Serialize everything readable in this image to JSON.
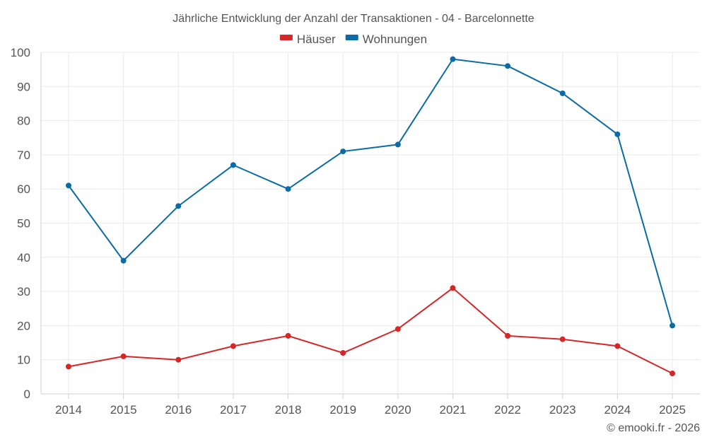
{
  "chart_data": {
    "type": "line",
    "title": "Jährliche Entwicklung der Anzahl der Transaktionen - 04 - Barcelonnette",
    "xlabel": "",
    "ylabel": "",
    "categories": [
      "2014",
      "2015",
      "2016",
      "2017",
      "2018",
      "2019",
      "2020",
      "2021",
      "2022",
      "2023",
      "2024",
      "2025"
    ],
    "ylim": [
      0,
      100
    ],
    "yticks": [
      0,
      10,
      20,
      30,
      40,
      50,
      60,
      70,
      80,
      90,
      100
    ],
    "grid": true,
    "legend_position": "top-center",
    "series": [
      {
        "name": "Häuser",
        "color": "#d62728",
        "values": [
          8,
          11,
          10,
          14,
          17,
          12,
          19,
          31,
          17,
          16,
          14,
          6
        ]
      },
      {
        "name": "Wohnungen",
        "color": "#0b6ba5",
        "values": [
          61,
          39,
          55,
          67,
          60,
          71,
          73,
          98,
          96,
          88,
          76,
          20
        ]
      }
    ]
  },
  "footer": {
    "credit": "© emooki.fr - 2026"
  }
}
